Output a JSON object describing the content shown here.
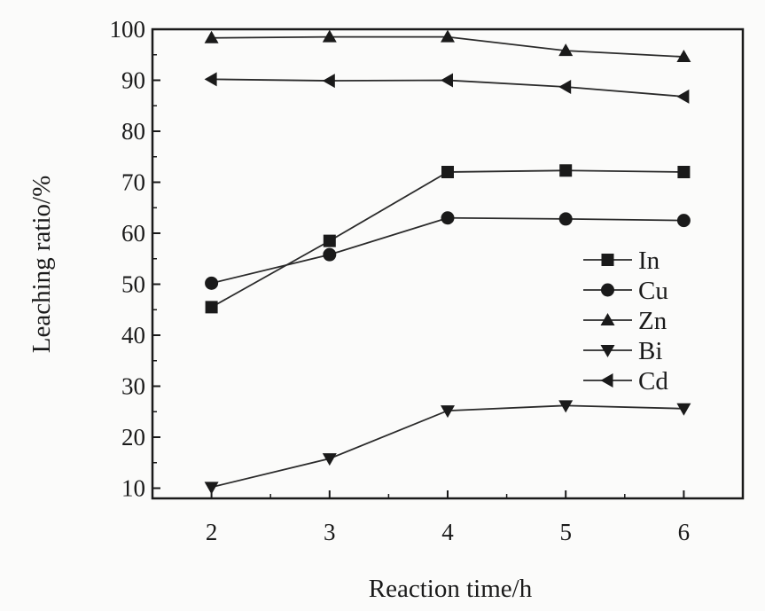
{
  "chart_data": {
    "type": "line",
    "title": "",
    "xlabel": "Reaction time/h",
    "ylabel": "Leaching ratio/%",
    "x": [
      2,
      3,
      4,
      5,
      6
    ],
    "xlim": [
      1.5,
      6.5
    ],
    "ylim": [
      8,
      100
    ],
    "xticks": [
      2,
      3,
      4,
      5,
      6
    ],
    "yticks": [
      10,
      20,
      30,
      40,
      50,
      60,
      70,
      80,
      90,
      100
    ],
    "grid": false,
    "legend_position": "right",
    "series": [
      {
        "name": "In",
        "marker": "square",
        "values": [
          45.5,
          58.5,
          72.0,
          72.3,
          72.0
        ]
      },
      {
        "name": "Cu",
        "marker": "circle",
        "values": [
          50.2,
          55.8,
          63.0,
          62.8,
          62.5
        ]
      },
      {
        "name": "Zn",
        "marker": "triangle-up",
        "values": [
          98.3,
          98.5,
          98.5,
          95.8,
          94.6
        ]
      },
      {
        "name": "Bi",
        "marker": "triangle-down",
        "values": [
          10.2,
          15.8,
          25.2,
          26.2,
          25.6
        ]
      },
      {
        "name": "Cd",
        "marker": "triangle-left",
        "values": [
          90.2,
          89.9,
          90.0,
          88.7,
          86.8
        ]
      }
    ],
    "colors": {
      "line": "#2a2a2a",
      "marker": "#1a1a1a",
      "axis": "#1a1a1a"
    }
  }
}
